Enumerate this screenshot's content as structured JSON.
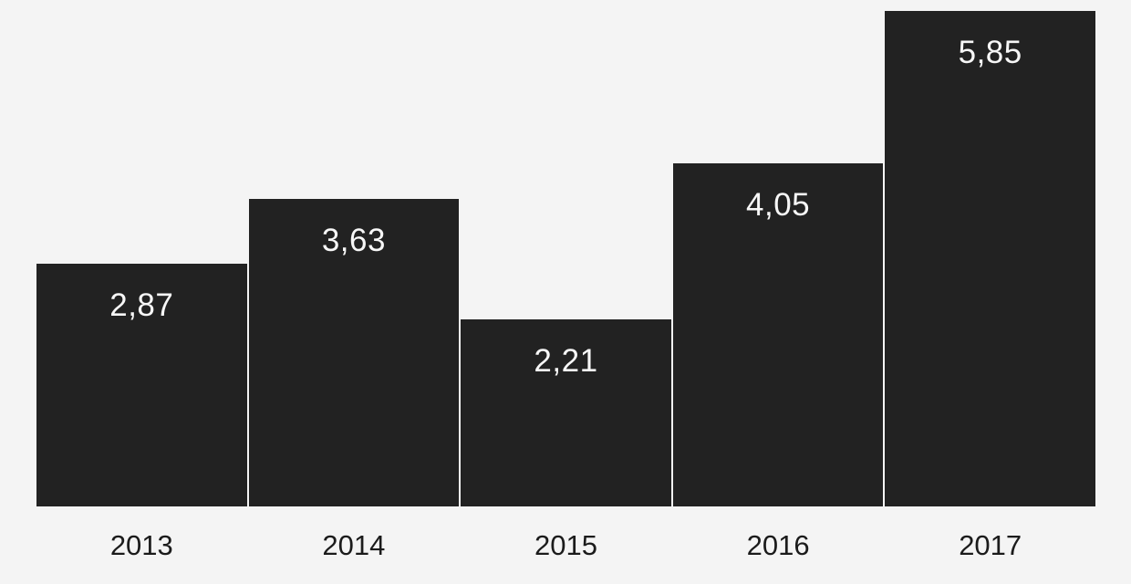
{
  "chart_data": {
    "type": "bar",
    "title": "",
    "xlabel": "",
    "ylabel": "",
    "categories": [
      "2013",
      "2014",
      "2015",
      "2016",
      "2017"
    ],
    "values": [
      2.87,
      3.63,
      2.21,
      4.05,
      5.85
    ],
    "value_labels": [
      "2,87",
      "3,63",
      "2,21",
      "4,05",
      "5,85"
    ],
    "ylim": [
      0,
      5.85
    ],
    "grid": false,
    "legend": null,
    "axes_lines": false,
    "colors": {
      "background": "#f4f4f4",
      "bar": "#222222",
      "value_label": "#f7f7f7",
      "tick_label": "#1b1b1b"
    }
  }
}
